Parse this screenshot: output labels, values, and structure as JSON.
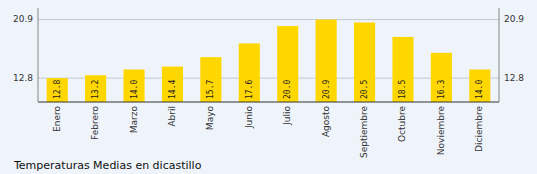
{
  "chart_data": {
    "type": "bar",
    "title": "Temperaturas Medias en dicastillo",
    "categories": [
      "Enero",
      "Febrero",
      "Marzo",
      "Abril",
      "Mayo",
      "Junio",
      "Julio",
      "Agosto",
      "Septiembre",
      "Octubre",
      "Noviembre",
      "Diciembre"
    ],
    "values": [
      12.8,
      13.2,
      14.0,
      14.4,
      15.7,
      17.6,
      20.0,
      20.9,
      20.5,
      18.5,
      16.3,
      14.0
    ],
    "value_labels": [
      "12.8",
      "13.2",
      "14.0",
      "14.4",
      "15.7",
      "17.6",
      "20.0",
      "20.9",
      "20.5",
      "18.5",
      "16.3",
      "14.0"
    ],
    "data_labels": true,
    "color": "#FFD700",
    "ylim": [
      9.5,
      22.5
    ],
    "yticks": [
      12.8,
      20.9
    ],
    "y2lim": [
      9.5,
      22.5
    ],
    "y2ticks": [
      12.8,
      20.9
    ],
    "grid": true
  }
}
